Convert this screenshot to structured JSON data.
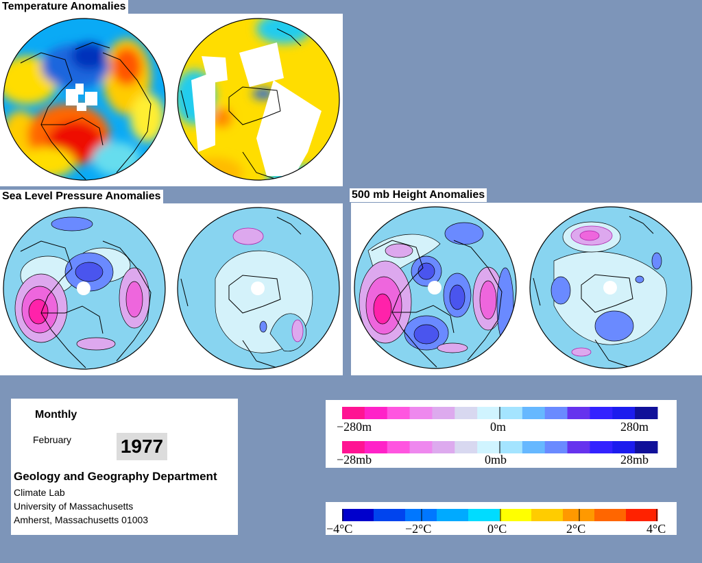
{
  "panels": {
    "temperature": {
      "title": "Temperature Anomalies"
    },
    "slp": {
      "title": "Sea Level Pressure Anomalies"
    },
    "height": {
      "title": "500 mb Height Anomalies"
    }
  },
  "info": {
    "frequency": "Monthly",
    "month": "February",
    "year": "1977",
    "department": "Geology and Geography Department",
    "lab": "Climate Lab",
    "university": "University of Massachusetts",
    "address": "Amherst, Massachusetts 01003"
  },
  "legends": {
    "height_scale": {
      "min": "−280m",
      "mid": "0m",
      "max": "280m"
    },
    "pressure_scale": {
      "min": "−28mb",
      "mid": "0mb",
      "max": "28mb"
    },
    "temperature_scale": {
      "labels": [
        "−4°C",
        "−2°C",
        "0°C",
        "2°C",
        "4°C"
      ]
    },
    "anomaly_colors": [
      "#ff1493",
      "#ff22c8",
      "#ff55e0",
      "#ee88ee",
      "#ddaaee",
      "#d8d8f0",
      "#d0f4ff",
      "#a4e4ff",
      "#66b8ff",
      "#6a8aff",
      "#6633ee",
      "#3322ff",
      "#1c1cee",
      "#101099"
    ],
    "temperature_colors": {
      "cold": [
        "#0000cc",
        "#0044ee",
        "#0077ff",
        "#00aaff",
        "#00dcff"
      ],
      "warm": [
        "#ffff00",
        "#ffcc00",
        "#ff9900",
        "#ff6600",
        "#ff2200"
      ]
    }
  }
}
